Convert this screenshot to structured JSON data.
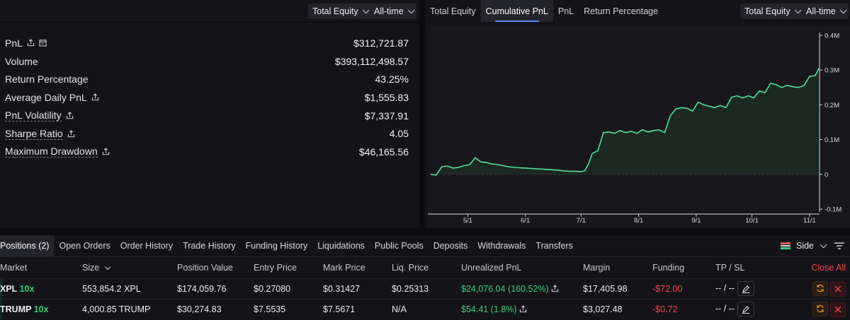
{
  "left": {
    "equity_dropdown": "Total Equity",
    "range_dropdown": "All-time",
    "metrics": [
      {
        "label": "PnL",
        "value": "$312,721.87"
      },
      {
        "label": "Volume",
        "value": "$393,112,498.57"
      },
      {
        "label": "Return Percentage",
        "value": "43.25%"
      },
      {
        "label": "Average Daily PnL",
        "value": "$1,555.83"
      },
      {
        "label": "PnL Volatility",
        "value": "$7,337.91"
      },
      {
        "label": "Sharpe Ratio",
        "value": "4.05"
      },
      {
        "label": "Maximum Drawdown",
        "value": "$46,165.56"
      }
    ]
  },
  "right": {
    "tabs": [
      "Total Equity",
      "Cumulative PnL",
      "PnL",
      "Return Percentage"
    ],
    "active_tab": "Cumulative PnL",
    "equity_dropdown": "Total Equity",
    "range_dropdown": "All-time"
  },
  "chart_data": {
    "type": "area",
    "title": "",
    "xlabel": "",
    "ylabel": "",
    "x_ticks": [
      "5/1",
      "6/1",
      "7/1",
      "8/1",
      "9/1",
      "10/1",
      "11/1"
    ],
    "y_ticks": [
      "0.4M",
      "0.3M",
      "0.2M",
      "0.1M",
      "0",
      "-0.1M"
    ],
    "ylim": [
      -100000,
      400000
    ],
    "line_color": "#4fe39a",
    "fill_color": "#1d2b25",
    "series": [
      {
        "x": [
          "4/11",
          "4/14",
          "4/17",
          "4/20",
          "4/23",
          "4/26",
          "4/29",
          "5/2",
          "5/5",
          "5/8",
          "5/11",
          "5/14",
          "5/17",
          "5/20",
          "5/23",
          "5/26",
          "5/29",
          "6/1",
          "6/4",
          "6/7",
          "6/10",
          "6/13",
          "6/16",
          "6/19",
          "6/22",
          "6/25",
          "6/28",
          "7/1",
          "7/3",
          "7/5",
          "7/7",
          "7/10",
          "7/13",
          "7/16",
          "7/19",
          "7/22",
          "7/25",
          "7/28",
          "7/31",
          "8/3",
          "8/6",
          "8/9",
          "8/12",
          "8/15",
          "8/18",
          "8/21",
          "8/24",
          "8/27",
          "8/30",
          "9/2",
          "9/5",
          "9/8",
          "9/11",
          "9/14",
          "9/17",
          "9/20",
          "9/23",
          "9/26",
          "9/29",
          "10/2",
          "10/5",
          "10/8",
          "10/11",
          "10/14",
          "10/17",
          "10/20",
          "10/23",
          "10/26",
          "10/29",
          "11/1",
          "11/4",
          "11/6"
        ],
        "values": [
          0,
          -2000,
          22000,
          24000,
          18000,
          20000,
          25000,
          28000,
          48000,
          36000,
          34000,
          30000,
          28000,
          25000,
          22000,
          20000,
          19000,
          18000,
          17000,
          16000,
          15000,
          14000,
          13000,
          12000,
          10000,
          9000,
          9000,
          8000,
          10000,
          30000,
          60000,
          68000,
          120000,
          122000,
          118000,
          126000,
          120000,
          124000,
          118000,
          128000,
          122000,
          126000,
          128000,
          120000,
          168000,
          188000,
          192000,
          190000,
          182000,
          208000,
          200000,
          196000,
          192000,
          198000,
          192000,
          222000,
          226000,
          220000,
          226000,
          220000,
          240000,
          235000,
          262000,
          258000,
          250000,
          256000,
          252000,
          250000,
          255000,
          282000,
          284000,
          305000
        ]
      }
    ]
  },
  "bottom": {
    "tabs": [
      "Positions (2)",
      "Open Orders",
      "Order History",
      "Trade History",
      "Funding History",
      "Liquidations",
      "Public Pools",
      "Deposits",
      "Withdrawals",
      "Transfers"
    ],
    "side_label": "Side",
    "columns": [
      "Market",
      "Size",
      "Position Value",
      "Entry Price",
      "Mark Price",
      "Liq. Price",
      "Unrealized PnL",
      "Margin",
      "Funding",
      "TP / SL",
      "Close All"
    ],
    "rows": [
      {
        "market": "XPL",
        "leverage": "10x",
        "size": "553,854.2 XPL",
        "position_value": "$174,059.76",
        "entry_price": "$0.27080",
        "mark_price": "$0.31427",
        "liq_price": "$0.25313",
        "unrealized_pnl": "$24,076.04 (160.52%)",
        "margin": "$17,405.98",
        "funding": "-$72.00",
        "tpsl": "-- / --"
      },
      {
        "market": "TRUMP",
        "leverage": "10x",
        "size": "4,000.85 TRUMP",
        "position_value": "$30,274.83",
        "entry_price": "$7.5535",
        "mark_price": "$7.5671",
        "liq_price": "N/A",
        "unrealized_pnl": "$54.41 (1.8%)",
        "margin": "$3,027.48",
        "funding": "-$0.72",
        "tpsl": "-- / --"
      }
    ]
  }
}
